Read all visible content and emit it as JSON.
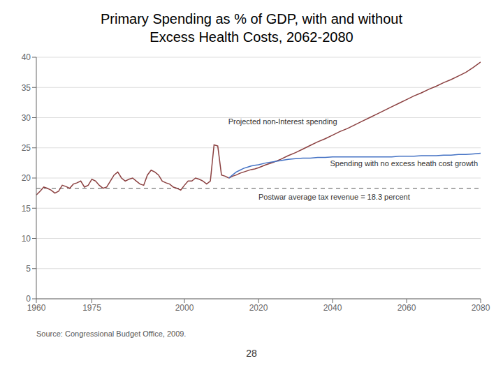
{
  "chart_data": {
    "type": "line",
    "title": "Primary Spending as % of GDP, with and without",
    "subtitle": "Excess Health Costs, 2062-2080",
    "xlim": [
      1960,
      2080
    ],
    "ylim": [
      0,
      40
    ],
    "xticks": [
      1960,
      1975,
      2000,
      2020,
      2040,
      2060,
      2080
    ],
    "yticks": [
      0,
      5,
      10,
      15,
      20,
      25,
      30,
      35,
      40
    ],
    "grid": true,
    "series": [
      {
        "color": "#8b4040",
        "x": [
          1960,
          1961,
          1962,
          1963,
          1964,
          1965,
          1966,
          1967,
          1968,
          1969,
          1970,
          1971,
          1972,
          1973,
          1974,
          1975,
          1976,
          1977,
          1978,
          1979,
          1980,
          1981,
          1982,
          1983,
          1984,
          1985,
          1986,
          1987,
          1988,
          1989,
          1990,
          1991,
          1992,
          1993,
          1994,
          1995,
          1996,
          1997,
          1998,
          1999,
          2000,
          2001,
          2002,
          2003,
          2004,
          2005,
          2006,
          2007,
          2008,
          2009,
          2010,
          2011,
          2012
        ],
        "values": [
          17.2,
          17.8,
          18.5,
          18.3,
          18.0,
          17.5,
          17.8,
          18.8,
          18.6,
          18.3,
          19.0,
          19.2,
          19.5,
          18.5,
          18.8,
          19.8,
          19.5,
          18.8,
          18.3,
          18.5,
          19.5,
          20.5,
          21.0,
          20.0,
          19.5,
          19.8,
          20.0,
          19.5,
          19.0,
          18.8,
          20.5,
          21.3,
          21.0,
          20.5,
          19.5,
          19.2,
          19.0,
          18.5,
          18.3,
          18.0,
          18.8,
          19.5,
          19.5,
          20.0,
          19.8,
          19.5,
          19.0,
          19.5,
          25.5,
          25.3,
          20.5,
          20.3,
          20.0
        ]
      },
      {
        "name": "Projected non-Interest spending",
        "color": "#8b4040",
        "x": [
          2012,
          2013,
          2014,
          2015,
          2016,
          2017,
          2018,
          2019,
          2020,
          2022,
          2024,
          2026,
          2028,
          2030,
          2032,
          2034,
          2036,
          2038,
          2040,
          2042,
          2044,
          2046,
          2048,
          2050,
          2052,
          2054,
          2056,
          2058,
          2060,
          2062,
          2064,
          2066,
          2068,
          2070,
          2072,
          2074,
          2076,
          2078,
          2080
        ],
        "values": [
          20.0,
          20.3,
          20.5,
          20.8,
          21.0,
          21.2,
          21.4,
          21.5,
          21.7,
          22.2,
          22.6,
          23.1,
          23.7,
          24.2,
          24.8,
          25.4,
          26.0,
          26.5,
          27.1,
          27.7,
          28.2,
          28.8,
          29.4,
          30.0,
          30.6,
          31.2,
          31.8,
          32.4,
          33.0,
          33.6,
          34.1,
          34.7,
          35.2,
          35.8,
          36.3,
          36.9,
          37.5,
          38.3,
          39.2
        ]
      },
      {
        "name": "Spending with no excess heath cost growth",
        "color": "#4472c4",
        "x": [
          2012,
          2013,
          2014,
          2015,
          2016,
          2017,
          2018,
          2019,
          2020,
          2022,
          2024,
          2026,
          2028,
          2030,
          2032,
          2034,
          2036,
          2038,
          2040,
          2042,
          2044,
          2046,
          2048,
          2050,
          2052,
          2054,
          2056,
          2058,
          2060,
          2062,
          2064,
          2066,
          2068,
          2070,
          2072,
          2074,
          2076,
          2078,
          2080
        ],
        "values": [
          20.0,
          20.5,
          21.0,
          21.3,
          21.6,
          21.8,
          22.0,
          22.1,
          22.2,
          22.5,
          22.7,
          22.9,
          23.1,
          23.2,
          23.3,
          23.3,
          23.4,
          23.4,
          23.5,
          23.5,
          23.5,
          23.5,
          23.5,
          23.5,
          23.5,
          23.5,
          23.5,
          23.6,
          23.6,
          23.6,
          23.7,
          23.7,
          23.7,
          23.8,
          23.8,
          23.9,
          23.9,
          24.0,
          24.1
        ]
      }
    ],
    "hline": {
      "value": 18.3,
      "label": "Postwar average tax revenue = 18.3 percent",
      "color": "#555555",
      "line_style": "dashed"
    },
    "source": "Source: Congressional Budget Office, 2009.",
    "page_number": "28"
  }
}
